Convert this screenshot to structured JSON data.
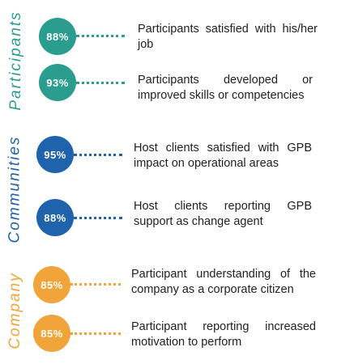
{
  "colors": {
    "participants": "#2a9d8f",
    "communities": "#1f63ad",
    "company": "#f0a43a",
    "text": "#222222"
  },
  "groups": [
    {
      "label": "Participants",
      "items": [
        {
          "value": "88%",
          "text": "Participants satisfied with his/her job"
        },
        {
          "value": "93%",
          "text": "Participants developed or improved skills or competencies"
        }
      ]
    },
    {
      "label": "Communities",
      "items": [
        {
          "value": "95%",
          "text": "Host clients satisfied with GPB impact on operational areas"
        },
        {
          "value": "88%",
          "text": "Host clients reporting GPB support as change agent"
        }
      ]
    },
    {
      "label": "Company",
      "items": [
        {
          "value": "85%",
          "text": "Participant understanding of the company as a corporate citizen"
        },
        {
          "value": "85%",
          "text": "Participant reporting increased motivation to perform"
        }
      ]
    }
  ]
}
